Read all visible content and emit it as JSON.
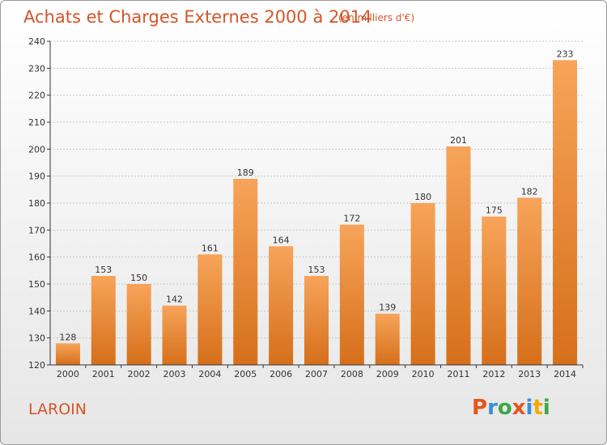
{
  "header": {
    "title": "Achats et Charges Externes 2000 à 2014",
    "subtitle": "(en milliers d'€)"
  },
  "footer": {
    "town": "LAROIN",
    "logo": "Proxiti",
    "logo_colors": [
      "#e8541a",
      "#3a8ed8",
      "#3aa845",
      "#e8541a",
      "#3a8ed8",
      "#f2a900",
      "#3aa845"
    ]
  },
  "colors": {
    "bar_light": "#f7a45a",
    "bar_dark": "#d66f1a",
    "title": "#d4552a",
    "grid": "#c8c8c8",
    "axis": "#333333"
  },
  "chart_data": {
    "type": "bar",
    "categories": [
      "2000",
      "2001",
      "2002",
      "2003",
      "2004",
      "2005",
      "2006",
      "2007",
      "2008",
      "2009",
      "2010",
      "2011",
      "2012",
      "2013",
      "2014"
    ],
    "values": [
      128,
      153,
      150,
      142,
      161,
      189,
      164,
      153,
      172,
      139,
      180,
      201,
      175,
      182,
      233
    ],
    "title": "Achats et Charges Externes 2000 à 2014",
    "xlabel": "",
    "ylabel": "",
    "ylim": [
      120,
      240
    ],
    "yticks": [
      120,
      130,
      140,
      150,
      160,
      170,
      180,
      190,
      200,
      210,
      220,
      230,
      240
    ],
    "grid": true,
    "legend": "none"
  }
}
